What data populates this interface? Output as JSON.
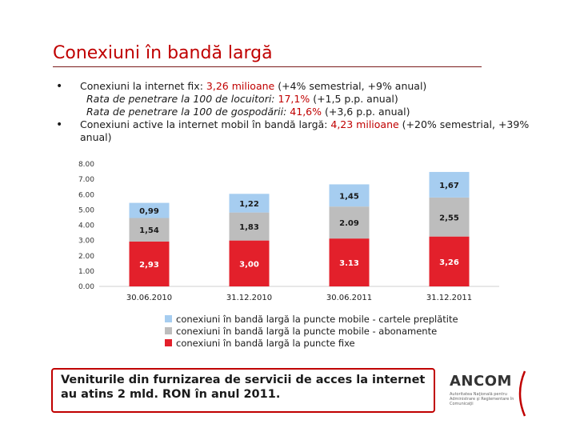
{
  "title": "Conexiuni în bandă largă",
  "bullets": {
    "b1": {
      "prefix": "Conexiuni la internet fix: ",
      "value": "3,26 milioane",
      "detail": " (+4% semestrial, +9% anual)"
    },
    "s1": {
      "prefix": "Rata de penetrare la 100 de locuitori: ",
      "value": "17,1%",
      "detail": " (+1,5 p.p. anual)"
    },
    "s2": {
      "prefix": "Rata de penetrare la 100 de gospodării: ",
      "value": "41,6%",
      "detail": " (+3,6 p.p. anual)"
    },
    "b2": {
      "prefix": "Conexiuni active la internet mobil în bandă largă: ",
      "value": "4,23 milioane",
      "detail": " (+20% semestrial, +39% anual)"
    }
  },
  "chart_data": {
    "type": "bar",
    "stacked": true,
    "categories": [
      "30.06.2010",
      "31.12.2010",
      "30.06.2011",
      "31.12.2011"
    ],
    "series": [
      {
        "name": "conexiuni în bandă largă la puncte fixe",
        "values": [
          2.93,
          3.0,
          3.13,
          3.26
        ],
        "labels": [
          "2,93",
          "3,00",
          "3.13",
          "3,26"
        ],
        "color": "#e3202b",
        "label_color": "#ffffff"
      },
      {
        "name": "conexiuni în bandă largă la puncte mobile - abonamente",
        "values": [
          1.54,
          1.83,
          2.09,
          2.55
        ],
        "labels": [
          "1,54",
          "1,83",
          "2.09",
          "2,55"
        ],
        "color": "#bdbdbd",
        "label_color": "#1a1a1a"
      },
      {
        "name": "conexiuni în bandă largă la puncte mobile - cartele preplătite",
        "values": [
          0.99,
          1.22,
          1.45,
          1.67
        ],
        "labels": [
          "0,99",
          "1,22",
          "1,45",
          "1,67"
        ],
        "color": "#a6cdf0",
        "label_color": "#1a1a1a"
      }
    ],
    "ylim": [
      0,
      8
    ],
    "yticks": [
      0,
      1,
      2,
      3,
      4,
      5,
      6,
      7,
      8
    ],
    "ytick_labels": [
      "0.00",
      "1.00",
      "2.00",
      "3.00",
      "4.00",
      "5.00",
      "6.00",
      "7.00",
      "8.00"
    ],
    "legend": {
      "placement": "bottom",
      "items": [
        {
          "label": "conexiuni în bandă largă la puncte mobile - cartele preplătite",
          "color": "#a6cdf0"
        },
        {
          "label": "conexiuni în bandă largă la puncte mobile - abonamente",
          "color": "#bdbdbd"
        },
        {
          "label": "conexiuni în bandă largă la puncte fixe",
          "color": "#e3202b"
        }
      ]
    }
  },
  "callout": "Veniturile din furnizarea de servicii de acces la internet au atins 2 mld. RON în anul 2011.",
  "logo": {
    "name": "ANCOM",
    "subtitle": "Autoritatea Naţională pentru Administrare şi Reglementare în Comunicaţii"
  }
}
